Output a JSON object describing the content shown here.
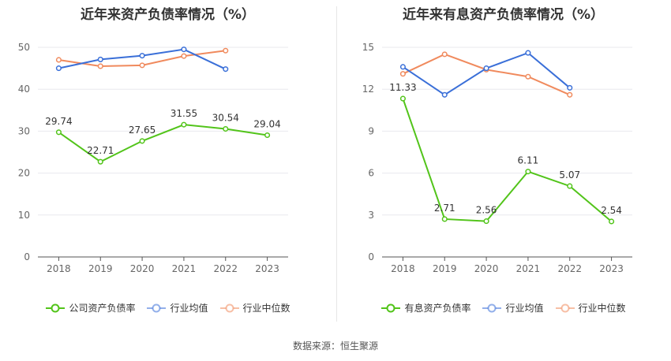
{
  "chart_data": [
    {
      "type": "line",
      "title": "近年来资产负债率情况（%）",
      "categories": [
        "2018",
        "2019",
        "2020",
        "2021",
        "2022",
        "2023"
      ],
      "ylim": [
        0,
        50
      ],
      "yticks": [
        0,
        10,
        20,
        30,
        40,
        50
      ],
      "grid": true,
      "legend_position": "bottom",
      "series": [
        {
          "name": "公司资产负债率",
          "color": "#52c41a",
          "values": [
            29.74,
            22.71,
            27.65,
            31.55,
            30.54,
            29.04
          ],
          "labels": [
            "29.74",
            "22.71",
            "27.65",
            "31.55",
            "30.54",
            "29.04"
          ]
        },
        {
          "name": "行业均值",
          "color": "#3a6fd8",
          "values": [
            45.0,
            47.1,
            48.0,
            49.5,
            44.8,
            null
          ]
        },
        {
          "name": "行业中位数",
          "color": "#f08a5d",
          "values": [
            47.0,
            45.5,
            45.7,
            47.9,
            49.2,
            null
          ]
        }
      ]
    },
    {
      "type": "line",
      "title": "近年来有息资产负债率情况（%）",
      "categories": [
        "2018",
        "2019",
        "2020",
        "2021",
        "2022",
        "2023"
      ],
      "ylim": [
        0,
        15
      ],
      "yticks": [
        0,
        3,
        6,
        9,
        12,
        15
      ],
      "grid": true,
      "legend_position": "bottom",
      "series": [
        {
          "name": "有息资产负债率",
          "color": "#52c41a",
          "values": [
            11.33,
            2.71,
            2.56,
            6.11,
            5.07,
            2.54
          ],
          "labels": [
            "11.33",
            "2.71",
            "2.56",
            "6.11",
            "5.07",
            "2.54"
          ]
        },
        {
          "name": "行业均值",
          "color": "#3a6fd8",
          "values": [
            13.6,
            11.6,
            13.5,
            14.6,
            12.1,
            null
          ]
        },
        {
          "name": "行业中位数",
          "color": "#f08a5d",
          "values": [
            13.1,
            14.5,
            13.4,
            12.9,
            11.6,
            null
          ]
        }
      ]
    }
  ],
  "footer": {
    "source": "数据来源：恒生聚源"
  }
}
